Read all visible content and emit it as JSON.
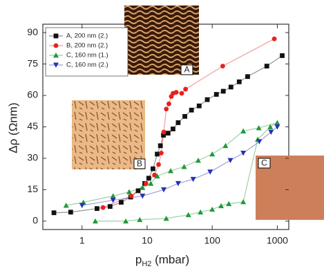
{
  "chart_data": {
    "type": "scatter-line",
    "x_label": [
      "p",
      "H2",
      " (mbar)"
    ],
    "y_label": "Δρ (Ωnm)",
    "xscale": "log",
    "xlim": [
      0.25,
      1500
    ],
    "ylim": [
      -4,
      94
    ],
    "xticks": [
      1,
      10,
      100,
      1000
    ],
    "yticks": [
      0,
      15,
      30,
      45,
      60,
      75,
      90
    ],
    "legend": "top-left",
    "series": [
      {
        "name": "A, 200 nm (2.)",
        "color": "#111111",
        "marker": "square",
        "x": [
          0.37,
          0.67,
          1.7,
          2.7,
          4,
          5.6,
          7.3,
          9.2,
          10.6,
          12.3,
          14.3,
          16,
          17.8,
          21,
          25,
          30,
          38,
          48,
          63,
          84,
          116,
          148,
          194,
          260,
          350,
          690,
          1190
        ],
        "values": [
          4,
          4.3,
          6,
          7,
          9,
          11.5,
          14.5,
          18,
          20.5,
          25,
          32,
          36,
          41,
          42,
          44,
          47,
          50,
          53,
          55,
          58,
          60.5,
          62,
          64,
          66.5,
          69,
          74,
          79
        ]
      },
      {
        "name": "B, 200 nm (2.)",
        "color": "#e8201e",
        "marker": "circle",
        "x": [
          2.1,
          5.7,
          9.6,
          13,
          15,
          16.5,
          18,
          19.7,
          21.6,
          23.5,
          25,
          28,
          34,
          39,
          145,
          900
        ],
        "values": [
          6.5,
          12,
          18,
          22,
          27,
          32.5,
          42.5,
          53.5,
          56,
          59.5,
          61,
          61.5,
          61,
          63,
          74,
          87
        ]
      },
      {
        "name": "C, 160 nm (1.)",
        "color": "#1f9a3a",
        "marker": "triangle-up",
        "x": [
          1.6,
          4.7,
          7.7,
          19.7,
          43,
          66,
          100,
          137,
          180,
          300,
          500,
          780,
          1000,
          520,
          300,
          160,
          100,
          61,
          37,
          23,
          14.3,
          11.4,
          8.5,
          5.3,
          3,
          1.05,
          0.57
        ],
        "values": [
          0,
          0,
          0.7,
          1.3,
          3,
          4.3,
          5.6,
          7.3,
          8.3,
          9.2,
          39,
          45,
          47,
          44.5,
          43,
          36,
          32,
          29,
          26,
          24,
          21.5,
          18,
          16,
          14,
          12,
          9,
          7.5
        ]
      },
      {
        "name": "C, 160 nm (2.)",
        "color": "#2a2fb5",
        "marker": "triangle-down",
        "x": [
          1,
          3,
          8.5,
          18,
          30,
          51,
          93,
          190,
          300,
          530,
          800,
          1000
        ],
        "values": [
          7.5,
          10,
          12,
          15,
          18,
          20,
          23.5,
          29,
          32.5,
          38,
          42.5,
          45
        ]
      }
    ],
    "insets": [
      {
        "label": "A"
      },
      {
        "label": "B"
      },
      {
        "label": "C"
      }
    ]
  }
}
